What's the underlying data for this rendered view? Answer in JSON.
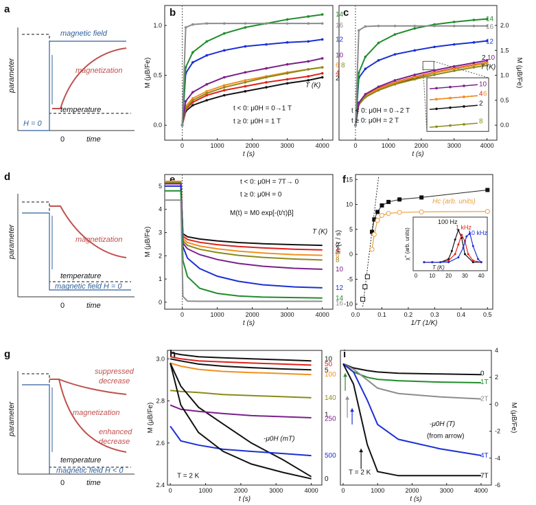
{
  "figure": {
    "letters": [
      "a",
      "b",
      "c",
      "d",
      "e",
      "f",
      "g",
      "h",
      "i"
    ]
  },
  "schematics": [
    {
      "panel": "a",
      "ylabel": "parameter",
      "xlabel": "time",
      "zero": "0",
      "labels": [
        "magnetic field",
        "magnetization",
        "temperature",
        "H = 0"
      ]
    },
    {
      "panel": "d",
      "ylabel": "parameter",
      "xlabel": "time",
      "zero": "0",
      "labels": [
        "magnetization",
        "temperature",
        "magnetic field H = 0"
      ]
    },
    {
      "panel": "g",
      "ylabel": "parameter",
      "xlabel": "time",
      "zero": "0",
      "labels": [
        "suppressed",
        "decrease",
        "magnetization",
        "enhanced",
        "decrease",
        "temperature",
        "magnetic field H < 0"
      ]
    }
  ],
  "colors": {
    "black": "#111111",
    "red": "#e0201b",
    "orange": "#f0901e",
    "olive": "#8a8a1a",
    "purple": "#7a1f8a",
    "blue": "#1a2fd6",
    "green": "#1e8c2a",
    "gray": "#8c8c8c",
    "mag_curve": "#c0504d",
    "field_line": "#2f5f9a",
    "hc_line": "#e8a040"
  },
  "chart_data": [
    {
      "panel": "b",
      "type": "line",
      "xlabel": "t (s)",
      "ylabel": "M (μB/Fe)",
      "xlim": [
        -500,
        4300
      ],
      "ylim": [
        -0.15,
        1.2
      ],
      "xticks": [
        "0",
        "1000",
        "2000",
        "3000",
        "4000"
      ],
      "yticks": [
        "0.0",
        "0.5",
        "1.0"
      ],
      "legend_title": "T (K)",
      "annotations": [
        "t < 0: μ0H = 0→1 T",
        "t ≥ 0: μ0H = 1 T"
      ],
      "series": [
        {
          "name": "2",
          "color": "black",
          "values": [
            0.0,
            0.14,
            0.2,
            0.25,
            0.3,
            0.34,
            0.38,
            0.42,
            0.45,
            0.48
          ]
        },
        {
          "name": "4",
          "color": "red",
          "values": [
            0.0,
            0.16,
            0.23,
            0.3,
            0.35,
            0.39,
            0.43,
            0.46,
            0.49,
            0.52
          ]
        },
        {
          "name": "6",
          "color": "orange",
          "values": [
            0.0,
            0.19,
            0.27,
            0.34,
            0.4,
            0.45,
            0.49,
            0.53,
            0.56,
            0.58
          ]
        },
        {
          "name": "8",
          "color": "olive",
          "values": [
            0.0,
            0.17,
            0.25,
            0.32,
            0.38,
            0.43,
            0.48,
            0.52,
            0.56,
            0.58
          ]
        },
        {
          "name": "10",
          "color": "purple",
          "values": [
            0.0,
            0.24,
            0.33,
            0.41,
            0.48,
            0.53,
            0.57,
            0.61,
            0.64,
            0.67
          ]
        },
        {
          "name": "12",
          "color": "blue",
          "values": [
            0.0,
            0.52,
            0.63,
            0.7,
            0.75,
            0.79,
            0.81,
            0.83,
            0.84,
            0.86
          ]
        },
        {
          "name": "14",
          "color": "green",
          "values": [
            0.0,
            0.58,
            0.73,
            0.84,
            0.92,
            0.98,
            1.02,
            1.06,
            1.09,
            1.11
          ]
        },
        {
          "name": "16",
          "color": "gray",
          "values": [
            0.0,
            0.98,
            1.01,
            1.02,
            1.02,
            1.02,
            1.02,
            1.02,
            1.02,
            1.02
          ]
        }
      ],
      "x": [
        0,
        100,
        300,
        700,
        1200,
        1800,
        2400,
        3000,
        3600,
        4000
      ]
    },
    {
      "panel": "c",
      "type": "line",
      "xlabel": "t (s)",
      "ylabel": "M (μB/Fe)",
      "xlim": [
        -500,
        4300
      ],
      "ylim": [
        -0.3,
        2.4
      ],
      "xticks": [
        "0",
        "1000",
        "2000",
        "3000",
        "4000"
      ],
      "yticks": [
        "0.0",
        "0.5",
        "1.0",
        "1.5",
        "2.0"
      ],
      "legend_title": "T (K)",
      "annotations": [
        "t < 0: μ0H = 0→2 T",
        "t ≥ 0: μ0H = 2 T"
      ],
      "inset_labels": [
        "10",
        "4",
        "6",
        "2",
        "8"
      ],
      "series": [
        {
          "name": "2",
          "color": "black",
          "values": [
            0.0,
            0.42,
            0.58,
            0.72,
            0.84,
            0.95,
            1.05,
            1.13,
            1.2,
            1.25
          ]
        },
        {
          "name": "4",
          "color": "red",
          "values": [
            0.0,
            0.43,
            0.59,
            0.74,
            0.86,
            0.97,
            1.06,
            1.14,
            1.21,
            1.26
          ]
        },
        {
          "name": "6",
          "color": "orange",
          "values": [
            0.0,
            0.43,
            0.59,
            0.73,
            0.85,
            0.96,
            1.05,
            1.13,
            1.2,
            1.25
          ]
        },
        {
          "name": "8",
          "color": "olive",
          "values": [
            0.0,
            0.41,
            0.56,
            0.7,
            0.82,
            0.92,
            1.01,
            1.09,
            1.16,
            1.2
          ]
        },
        {
          "name": "10",
          "color": "purple",
          "values": [
            0.0,
            0.45,
            0.62,
            0.77,
            0.9,
            1.01,
            1.1,
            1.18,
            1.25,
            1.3
          ]
        },
        {
          "name": "12",
          "color": "blue",
          "values": [
            0.0,
            0.95,
            1.13,
            1.3,
            1.42,
            1.5,
            1.57,
            1.62,
            1.66,
            1.69
          ]
        },
        {
          "name": "14",
          "color": "green",
          "values": [
            0.0,
            1.05,
            1.37,
            1.65,
            1.82,
            1.94,
            2.02,
            2.07,
            2.11,
            2.13
          ]
        },
        {
          "name": "16",
          "color": "gray",
          "values": [
            0.0,
            1.9,
            1.98,
            1.99,
            1.99,
            1.99,
            1.99,
            1.99,
            1.99,
            1.99
          ]
        }
      ],
      "x": [
        0,
        100,
        300,
        700,
        1200,
        1800,
        2400,
        3000,
        3600,
        4000
      ]
    },
    {
      "panel": "e",
      "type": "line",
      "xlabel": "t (s)",
      "ylabel": "M (μB/Fe)",
      "xlim": [
        -500,
        4300
      ],
      "ylim": [
        -0.3,
        5.5
      ],
      "xticks": [
        "0",
        "1000",
        "2000",
        "3000",
        "4000"
      ],
      "yticks": [
        "0",
        "1",
        "2",
        "3",
        "4",
        "5"
      ],
      "legend_title": "T (K)",
      "annotations": [
        "t < 0: μ0H = 7T→ 0",
        "t ≥ 0: μ0H = 0",
        "M(t) = M0 exp[-(t/τ)β]"
      ],
      "series": [
        {
          "name": "2",
          "color": "black",
          "values": [
            5.2,
            5.2,
            2.95,
            2.82,
            2.72,
            2.64,
            2.57,
            2.52,
            2.48,
            2.45
          ]
        },
        {
          "name": "4",
          "color": "red",
          "values": [
            5.2,
            5.2,
            2.85,
            2.7,
            2.58,
            2.48,
            2.4,
            2.34,
            2.28,
            2.25
          ]
        },
        {
          "name": "6",
          "color": "orange",
          "values": [
            5.2,
            5.2,
            2.75,
            2.57,
            2.42,
            2.3,
            2.2,
            2.12,
            2.05,
            2.02
          ]
        },
        {
          "name": "8",
          "color": "olive",
          "values": [
            5.15,
            5.15,
            2.65,
            2.45,
            2.28,
            2.14,
            2.02,
            1.93,
            1.86,
            1.82
          ]
        },
        {
          "name": "10",
          "color": "purple",
          "values": [
            5.1,
            5.1,
            2.55,
            2.3,
            2.05,
            1.84,
            1.67,
            1.55,
            1.46,
            1.42
          ]
        },
        {
          "name": "12",
          "color": "blue",
          "values": [
            5.0,
            5.0,
            2.4,
            1.9,
            1.45,
            1.12,
            0.9,
            0.75,
            0.66,
            0.62
          ]
        },
        {
          "name": "14",
          "color": "green",
          "values": [
            4.8,
            4.8,
            1.8,
            1.1,
            0.6,
            0.38,
            0.27,
            0.22,
            0.2,
            0.18
          ]
        },
        {
          "name": "16",
          "color": "gray",
          "values": [
            4.4,
            4.4,
            0.25,
            0.05,
            0.04,
            0.04,
            0.04,
            0.04,
            0.04,
            0.04
          ]
        }
      ],
      "x": [
        -500,
        -40,
        20,
        150,
        500,
        1000,
        1600,
        2300,
        3200,
        4000
      ]
    },
    {
      "panel": "f",
      "type": "scatter",
      "xlabel": "1/T (1/K)",
      "ylabel": "ln (τ / s)",
      "xlim": [
        0.0,
        0.52
      ],
      "ylim": [
        -11,
        16
      ],
      "xticks": [
        "0.0",
        "0.1",
        "0.2",
        "0.3",
        "0.4",
        "0.5"
      ],
      "yticks": [
        "-10",
        "-5",
        "0",
        "5",
        "10",
        "15"
      ],
      "hc_label": "Hc (arb. units)",
      "series": [
        {
          "name": "ln τ",
          "color": "black",
          "x": [
            0.0625,
            0.071,
            0.0833,
            0.1,
            0.125,
            0.1667,
            0.25,
            0.5
          ],
          "values": [
            4.5,
            7.0,
            8.5,
            9.8,
            10.5,
            11.0,
            11.4,
            12.9
          ]
        },
        {
          "name": "ln τ (open)",
          "color": "black",
          "x": [
            0.0275,
            0.036,
            0.045
          ],
          "values": [
            -9.0,
            -6.5,
            -4.5
          ]
        },
        {
          "name": "Hc",
          "color": "hc_line",
          "x": [
            0.0625,
            0.071,
            0.0833,
            0.1,
            0.125,
            0.1667,
            0.25,
            0.5
          ],
          "values": [
            1.0,
            4.0,
            6.8,
            7.8,
            8.2,
            8.4,
            8.5,
            8.6
          ]
        }
      ],
      "inset": {
        "xlabel": "T (K)",
        "ylabel": "χ'' (arb. units)",
        "xticks": [
          "0",
          "10",
          "20",
          "30",
          "40"
        ],
        "labels": [
          "100 Hz",
          "1 kHz",
          "10 kHz"
        ],
        "series": [
          {
            "name": "100 Hz",
            "color": "black",
            "x": [
              5,
              10,
              15,
              20,
              22,
              24,
              26,
              28,
              30,
              35,
              40
            ],
            "values": [
              0.1,
              0.1,
              0.1,
              0.3,
              0.8,
              1.5,
              2.1,
              1.6,
              0.6,
              0.1,
              0.1
            ]
          },
          {
            "name": "1 kHz",
            "color": "red",
            "x": [
              5,
              10,
              15,
              20,
              24,
              26,
              28,
              30,
              32,
              35,
              40
            ],
            "values": [
              0.1,
              0.1,
              0.1,
              0.2,
              0.6,
              1.2,
              1.8,
              1.4,
              0.6,
              0.2,
              0.1
            ]
          },
          {
            "name": "10 kHz",
            "color": "blue",
            "x": [
              5,
              10,
              15,
              20,
              26,
              29,
              31,
              33,
              35,
              38,
              40
            ],
            "values": [
              0.1,
              0.1,
              0.1,
              0.1,
              0.4,
              1.0,
              1.7,
              1.9,
              1.1,
              0.3,
              0.1
            ]
          }
        ]
      }
    },
    {
      "panel": "h",
      "type": "line",
      "xlabel": "t (s)",
      "ylabel": "M (μB/Fe)",
      "xlim": [
        -80,
        4300
      ],
      "ylim": [
        2.4,
        3.04
      ],
      "xticks": [
        "0",
        "1000",
        "2000",
        "3000",
        "4000"
      ],
      "yticks": [
        "2.4",
        "2.6",
        "2.8",
        "3.0"
      ],
      "legend_title": "-μ0H (mT)",
      "annotation": "T = 2 K",
      "series": [
        {
          "name": "10",
          "color": "black",
          "values": [
            3.03,
            3.02,
            3.01,
            3.005,
            3.0,
            2.995,
            2.99
          ]
        },
        {
          "name": "50",
          "color": "red",
          "values": [
            3.01,
            3.0,
            2.99,
            2.985,
            2.98,
            2.975,
            2.97
          ]
        },
        {
          "name": "5",
          "color": "black",
          "values": [
            3.0,
            2.99,
            2.975,
            2.965,
            2.958,
            2.952,
            2.948
          ]
        },
        {
          "name": "100",
          "color": "orange",
          "values": [
            2.98,
            2.965,
            2.95,
            2.94,
            2.935,
            2.93,
            2.925
          ]
        },
        {
          "name": "140",
          "color": "olive",
          "values": [
            2.85,
            2.845,
            2.84,
            2.83,
            2.825,
            2.82,
            2.815
          ]
        },
        {
          "name": "1",
          "color": "black",
          "values": [
            2.98,
            2.87,
            2.77,
            2.69,
            2.6,
            2.52,
            2.44
          ]
        },
        {
          "name": "250",
          "color": "purple",
          "values": [
            2.78,
            2.76,
            2.75,
            2.74,
            2.73,
            2.725,
            2.72
          ]
        },
        {
          "name": "500",
          "color": "blue",
          "values": [
            2.68,
            2.61,
            2.59,
            2.57,
            2.56,
            2.55,
            2.54
          ]
        },
        {
          "name": "0",
          "color": "black",
          "values": [
            2.98,
            2.78,
            2.65,
            2.56,
            2.5,
            2.46,
            2.43
          ]
        }
      ],
      "x": [
        0,
        300,
        800,
        1500,
        2300,
        3200,
        4000
      ]
    },
    {
      "panel": "i",
      "type": "line",
      "xlabel": "t (s)",
      "ylabel": "M (μB/Fe)",
      "xlim": [
        -80,
        4300
      ],
      "ylim": [
        -6,
        4
      ],
      "xticks": [
        "0",
        "1000",
        "2000",
        "3000",
        "4000"
      ],
      "yticks": [
        "-6",
        "-4",
        "-2",
        "0",
        "2",
        "4"
      ],
      "annotation": "T = 2 K",
      "legend_title": "-μ0H (T)",
      "legend_note": "(from arrow)",
      "series": [
        {
          "name": "0",
          "color": "black",
          "values": [
            3.0,
            2.7,
            2.5,
            2.4,
            2.3,
            2.25,
            2.2
          ]
        },
        {
          "name": "1T",
          "color": "green",
          "values": [
            3.0,
            2.4,
            2.0,
            1.85,
            1.75,
            1.65,
            1.6
          ]
        },
        {
          "name": "2T",
          "color": "gray",
          "values": [
            3.0,
            2.6,
            1.8,
            1.2,
            0.8,
            0.55,
            0.4
          ]
        },
        {
          "name": "4T",
          "color": "blue",
          "values": [
            3.0,
            2.4,
            0.3,
            -1.5,
            -2.6,
            -3.3,
            -3.8
          ]
        },
        {
          "name": "7T",
          "color": "black",
          "values": [
            3.0,
            1.5,
            -3.0,
            -5.0,
            -5.3,
            -5.3,
            -5.3
          ]
        }
      ],
      "x": [
        0,
        300,
        700,
        1000,
        1600,
        2800,
        4000
      ]
    }
  ]
}
